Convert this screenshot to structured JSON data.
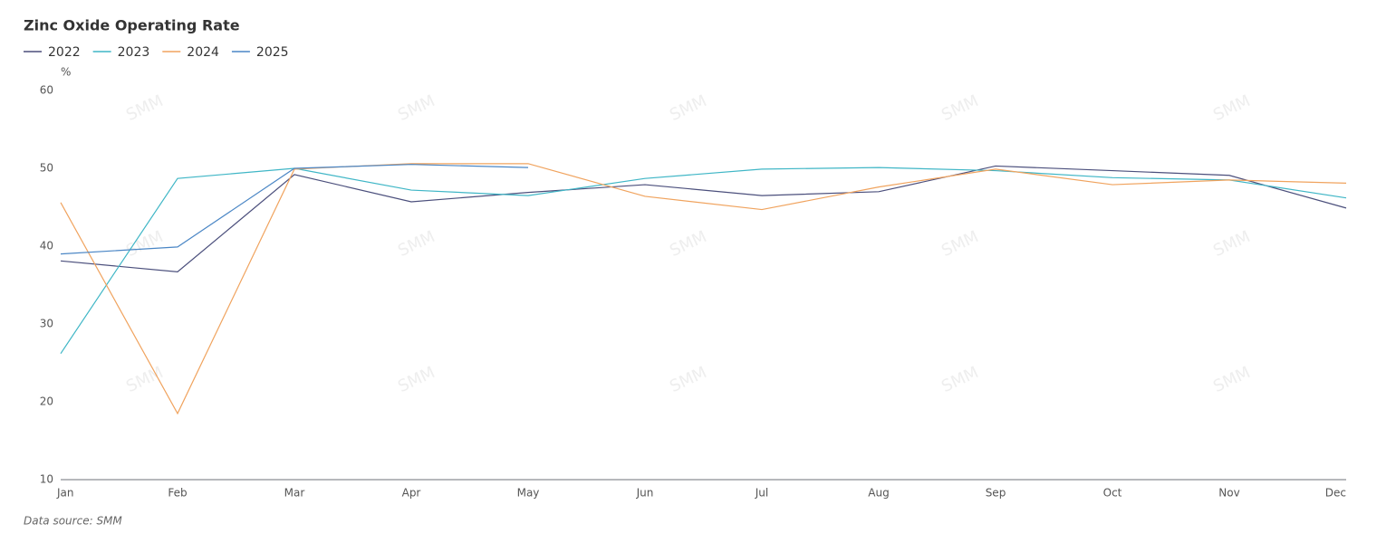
{
  "chart_data": {
    "type": "line",
    "title": "Zinc Oxide Operating Rate",
    "y_unit": "%",
    "categories": [
      "Jan",
      "Feb",
      "Mar",
      "Apr",
      "May",
      "Jun",
      "Jul",
      "Aug",
      "Sep",
      "Oct",
      "Nov",
      "Dec"
    ],
    "series": [
      {
        "name": "2022",
        "color": "#4b4f7c",
        "values": [
          38.1,
          36.7,
          49.2,
          45.7,
          46.9,
          47.9,
          46.5,
          47.0,
          50.3,
          49.7,
          49.1,
          44.9
        ]
      },
      {
        "name": "2023",
        "color": "#3fb6c6",
        "values": [
          26.2,
          48.7,
          50.0,
          47.2,
          46.5,
          48.7,
          49.9,
          50.1,
          49.7,
          48.8,
          48.5,
          46.2
        ]
      },
      {
        "name": "2024",
        "color": "#f0a35e",
        "values": [
          45.6,
          18.5,
          49.9,
          50.6,
          50.6,
          46.4,
          44.7,
          47.6,
          49.9,
          47.9,
          48.5,
          48.1
        ]
      },
      {
        "name": "2025",
        "color": "#4a86c5",
        "values": [
          39.0,
          39.9,
          50.0,
          50.5,
          50.1,
          null,
          null,
          null,
          null,
          null,
          null,
          null
        ]
      }
    ],
    "ylim": [
      10,
      60
    ],
    "yticks": [
      10,
      20,
      30,
      40,
      50,
      60
    ],
    "watermark": "SMM",
    "source": "Data source:  SMM"
  }
}
